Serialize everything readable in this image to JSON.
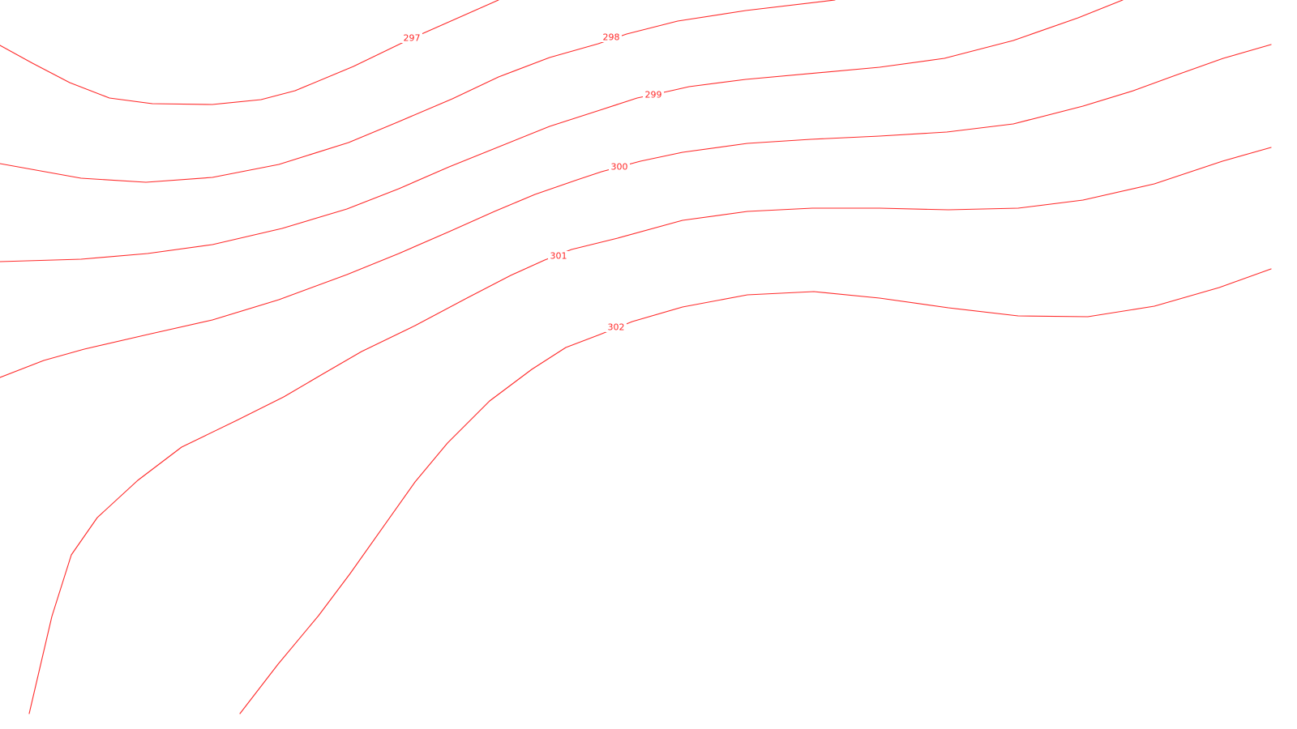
{
  "map": {
    "line_color": "#ff2a2a",
    "background": "#ffffff",
    "contour_interval": 1
  },
  "contours": [
    {
      "level": 297,
      "label": "297"
    },
    {
      "level": 298,
      "label": "298"
    },
    {
      "level": 299,
      "label": "299"
    },
    {
      "level": 300,
      "label": "300"
    },
    {
      "level": 301,
      "label": "301"
    },
    {
      "level": 302,
      "label": "302"
    }
  ]
}
